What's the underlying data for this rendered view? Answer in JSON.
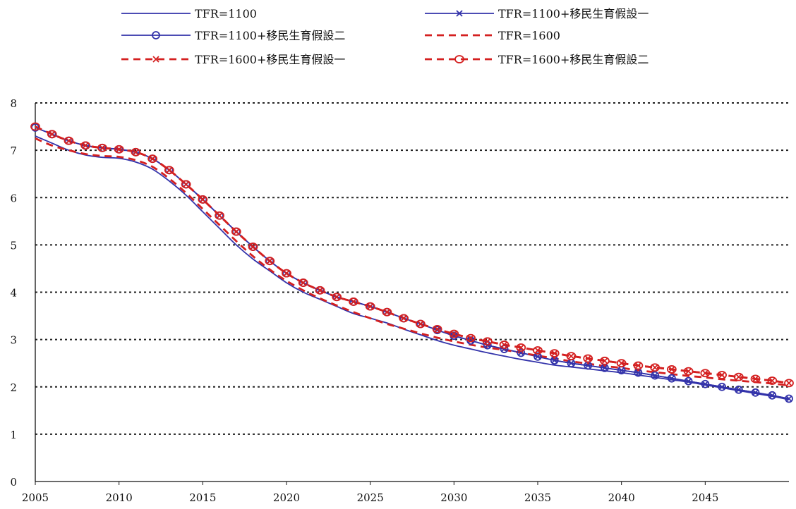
{
  "chart_data": {
    "type": "line",
    "title": "",
    "xlabel": "",
    "ylabel": "",
    "xlim": [
      2005,
      2050
    ],
    "ylim": [
      0,
      8
    ],
    "grid": "horizontal dotted",
    "legend_position": "top",
    "x_ticks": [
      2005,
      2010,
      2015,
      2020,
      2025,
      2030,
      2035,
      2040,
      2045
    ],
    "y_ticks": [
      0,
      1,
      2,
      3,
      4,
      5,
      6,
      7,
      8
    ],
    "x": [
      2005,
      2006,
      2007,
      2008,
      2009,
      2010,
      2011,
      2012,
      2013,
      2014,
      2015,
      2016,
      2017,
      2018,
      2019,
      2020,
      2021,
      2022,
      2023,
      2024,
      2025,
      2026,
      2027,
      2028,
      2029,
      2030,
      2031,
      2032,
      2033,
      2034,
      2035,
      2036,
      2037,
      2038,
      2039,
      2040,
      2041,
      2042,
      2043,
      2044,
      2045,
      2046,
      2047,
      2048,
      2049,
      2050
    ],
    "series": [
      {
        "name": "TFR=1100",
        "color": "#3333aa",
        "line": "solid",
        "marker": "none",
        "values": [
          7.3,
          7.15,
          7.0,
          6.9,
          6.85,
          6.83,
          6.75,
          6.6,
          6.35,
          6.05,
          5.7,
          5.35,
          5.0,
          4.7,
          4.45,
          4.2,
          4.0,
          3.85,
          3.7,
          3.55,
          3.45,
          3.35,
          3.22,
          3.1,
          2.98,
          2.88,
          2.8,
          2.72,
          2.65,
          2.58,
          2.52,
          2.46,
          2.42,
          2.38,
          2.34,
          2.3,
          2.25,
          2.2,
          2.15,
          2.1,
          2.04,
          1.98,
          1.92,
          1.86,
          1.8,
          1.73
        ]
      },
      {
        "name": "TFR=1100+移民生育假設一",
        "color": "#3333aa",
        "line": "solid",
        "marker": "x",
        "values": [
          7.48,
          7.34,
          7.2,
          7.1,
          7.05,
          7.02,
          6.96,
          6.82,
          6.58,
          6.28,
          5.96,
          5.62,
          5.28,
          4.96,
          4.66,
          4.4,
          4.2,
          4.04,
          3.9,
          3.8,
          3.7,
          3.58,
          3.45,
          3.33,
          3.2,
          3.08,
          2.98,
          2.88,
          2.8,
          2.72,
          2.64,
          2.56,
          2.5,
          2.45,
          2.4,
          2.35,
          2.3,
          2.24,
          2.18,
          2.12,
          2.06,
          2.0,
          1.94,
          1.88,
          1.82,
          1.75
        ]
      },
      {
        "name": "TFR=1100+移民生育假設二",
        "color": "#3333aa",
        "line": "solid",
        "marker": "o",
        "values": [
          7.48,
          7.34,
          7.2,
          7.1,
          7.05,
          7.02,
          6.96,
          6.82,
          6.58,
          6.28,
          5.96,
          5.62,
          5.28,
          4.96,
          4.66,
          4.4,
          4.2,
          4.04,
          3.9,
          3.8,
          3.7,
          3.58,
          3.45,
          3.33,
          3.2,
          3.08,
          2.98,
          2.88,
          2.8,
          2.72,
          2.64,
          2.56,
          2.5,
          2.45,
          2.4,
          2.35,
          2.3,
          2.24,
          2.18,
          2.12,
          2.06,
          2.0,
          1.94,
          1.88,
          1.82,
          1.75
        ]
      },
      {
        "name": "TFR=1600",
        "color": "#d42020",
        "line": "dashed",
        "marker": "none",
        "values": [
          7.25,
          7.1,
          7.0,
          6.92,
          6.88,
          6.86,
          6.79,
          6.65,
          6.4,
          6.1,
          5.76,
          5.42,
          5.08,
          4.76,
          4.48,
          4.24,
          4.04,
          3.87,
          3.72,
          3.58,
          3.45,
          3.33,
          3.23,
          3.13,
          3.04,
          2.96,
          2.89,
          2.83,
          2.78,
          2.72,
          2.66,
          2.6,
          2.54,
          2.49,
          2.44,
          2.4,
          2.35,
          2.31,
          2.27,
          2.23,
          2.2,
          2.16,
          2.13,
          2.1,
          2.07,
          2.03
        ]
      },
      {
        "name": "TFR=1600+移民生育假設一",
        "color": "#d42020",
        "line": "dashed",
        "marker": "x",
        "values": [
          7.5,
          7.34,
          7.2,
          7.1,
          7.05,
          7.02,
          6.96,
          6.82,
          6.58,
          6.28,
          5.96,
          5.62,
          5.28,
          4.96,
          4.66,
          4.4,
          4.2,
          4.04,
          3.9,
          3.8,
          3.7,
          3.58,
          3.45,
          3.33,
          3.22,
          3.12,
          3.03,
          2.96,
          2.89,
          2.83,
          2.77,
          2.71,
          2.65,
          2.6,
          2.55,
          2.5,
          2.45,
          2.41,
          2.37,
          2.33,
          2.29,
          2.25,
          2.21,
          2.17,
          2.13,
          2.08
        ]
      },
      {
        "name": "TFR=1600+移民生育假設二",
        "color": "#d42020",
        "line": "dashed",
        "marker": "diamond",
        "values": [
          7.5,
          7.34,
          7.2,
          7.1,
          7.05,
          7.02,
          6.96,
          6.82,
          6.58,
          6.28,
          5.96,
          5.62,
          5.28,
          4.96,
          4.66,
          4.4,
          4.2,
          4.04,
          3.9,
          3.8,
          3.7,
          3.58,
          3.45,
          3.33,
          3.22,
          3.12,
          3.03,
          2.96,
          2.89,
          2.83,
          2.77,
          2.71,
          2.65,
          2.6,
          2.55,
          2.5,
          2.45,
          2.41,
          2.37,
          2.33,
          2.29,
          2.25,
          2.21,
          2.17,
          2.13,
          2.08
        ]
      }
    ]
  }
}
